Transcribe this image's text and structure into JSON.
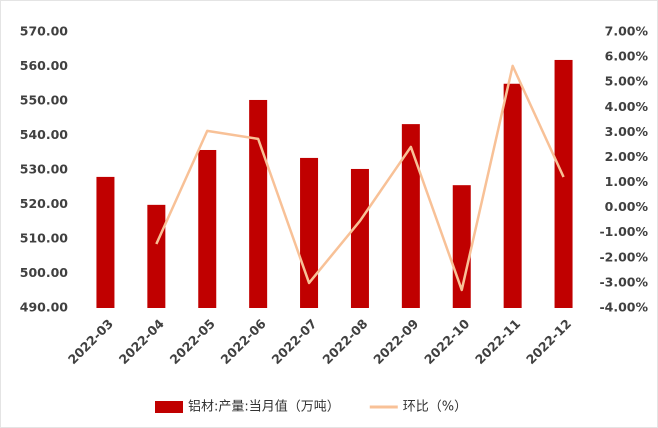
{
  "chart_data": {
    "type": "bar_line",
    "categories": [
      "2022-03",
      "2022-04",
      "2022-05",
      "2022-06",
      "2022-07",
      "2022-08",
      "2022-09",
      "2022-10",
      "2022-11",
      "2022-12"
    ],
    "series": [
      {
        "name": "铝材:产量:当月值（万吨）",
        "color": "#c00000",
        "type": "bar",
        "values": [
          528,
          519.9,
          535.8,
          550.3,
          533.5,
          530.3,
          543.3,
          525.6,
          555,
          561.9
        ]
      },
      {
        "name": "环比（%）",
        "color": "#f8c197",
        "type": "line",
        "axis": "y2",
        "values": [
          null,
          -1.45,
          3.06,
          2.74,
          -3.0,
          -0.53,
          2.42,
          -3.28,
          5.65,
          1.22
        ]
      }
    ],
    "ylim": [
      490,
      570
    ],
    "yticks": [
      {
        "value": 490,
        "label": "490.00"
      },
      {
        "value": 500,
        "label": "500.00"
      },
      {
        "value": 510,
        "label": "510.00"
      },
      {
        "value": 520,
        "label": "520.00"
      },
      {
        "value": 530,
        "label": "530.00"
      },
      {
        "value": 540,
        "label": "540.00"
      },
      {
        "value": 550,
        "label": "550.00"
      },
      {
        "value": 560,
        "label": "560.00"
      },
      {
        "value": 570,
        "label": "570.00"
      }
    ],
    "y2lim": [
      -4,
      7
    ],
    "y2ticks": [
      {
        "value": -4,
        "label": "-4.00%"
      },
      {
        "value": -3,
        "label": "-3.00%"
      },
      {
        "value": -2,
        "label": "-2.00%"
      },
      {
        "value": -1,
        "label": "-1.00%"
      },
      {
        "value": 0,
        "label": "0.00%"
      },
      {
        "value": 1,
        "label": "1.00%"
      },
      {
        "value": 2,
        "label": "2.00%"
      },
      {
        "value": 3,
        "label": "3.00%"
      },
      {
        "value": 4,
        "label": "4.00%"
      },
      {
        "value": 5,
        "label": "5.00%"
      },
      {
        "value": 6,
        "label": "6.00%"
      },
      {
        "value": 7,
        "label": "7.00%"
      }
    ],
    "legend": "bottom"
  }
}
